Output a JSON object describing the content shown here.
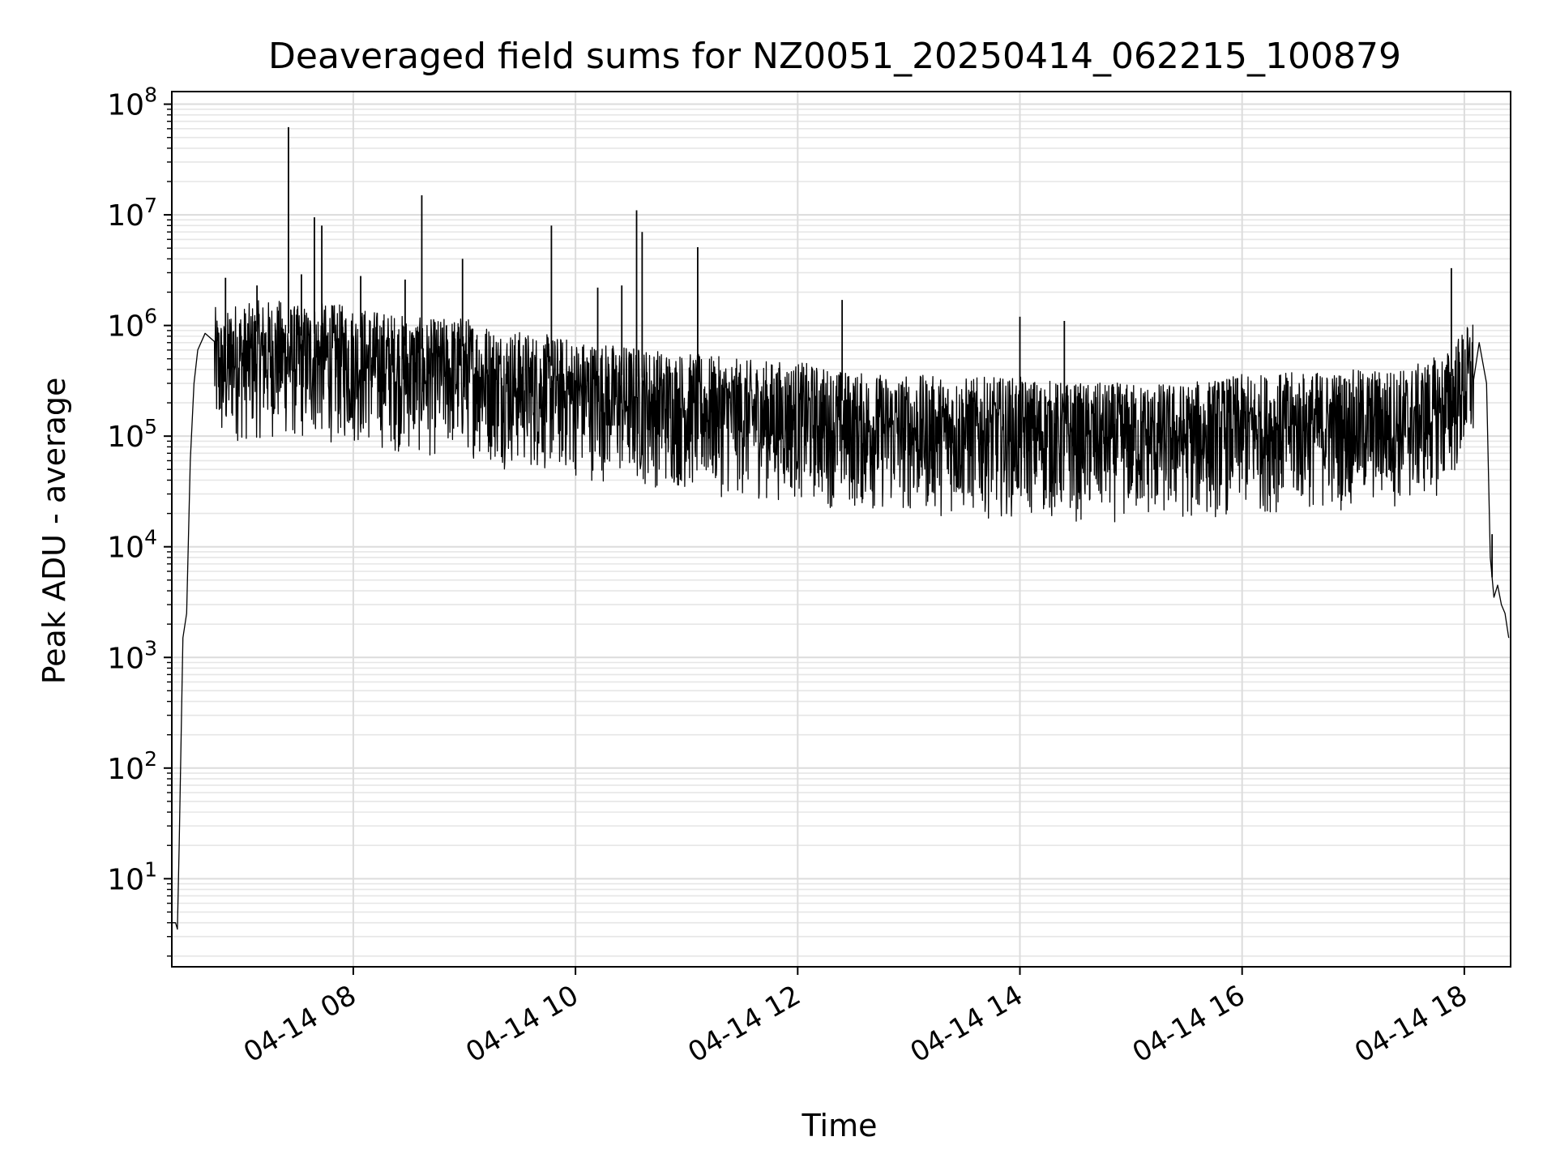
{
  "chart_data": {
    "type": "line",
    "title": "Deaveraged field sums for NZ0051_20250414_062215_100879",
    "xlabel": "Time",
    "ylabel": "Peak ADU - average",
    "yscale": "log",
    "grid": true,
    "legend": "none",
    "xlim": [
      "2025-04-14T06:22",
      "2025-04-14T18:25"
    ],
    "ylim": [
      1.6,
      130000000
    ],
    "x_ticks": [
      {
        "value": "2025-04-14T08:00",
        "label": "04-14 08"
      },
      {
        "value": "2025-04-14T10:00",
        "label": "04-14 10"
      },
      {
        "value": "2025-04-14T12:00",
        "label": "04-14 12"
      },
      {
        "value": "2025-04-14T14:00",
        "label": "04-14 14"
      },
      {
        "value": "2025-04-14T16:00",
        "label": "04-14 16"
      },
      {
        "value": "2025-04-14T18:00",
        "label": "04-14 18"
      }
    ],
    "y_ticks": [
      {
        "value": 10,
        "base": "10",
        "exp": "1"
      },
      {
        "value": 100,
        "base": "10",
        "exp": "2"
      },
      {
        "value": 1000,
        "base": "10",
        "exp": "3"
      },
      {
        "value": 10000,
        "base": "10",
        "exp": "4"
      },
      {
        "value": 100000,
        "base": "10",
        "exp": "5"
      },
      {
        "value": 1000000,
        "base": "10",
        "exp": "6"
      },
      {
        "value": 10000000,
        "base": "10",
        "exp": "7"
      },
      {
        "value": 100000000,
        "base": "10",
        "exp": "8"
      }
    ],
    "series": [
      {
        "color": "#000000",
        "x": [
          "2025-04-14T06:22",
          "2025-04-14T06:24",
          "2025-04-14T06:25",
          "2025-04-14T06:26",
          "2025-04-14T06:28",
          "2025-04-14T06:30",
          "2025-04-14T06:32",
          "2025-04-14T06:34",
          "2025-04-14T06:36",
          "2025-04-14T06:40",
          "2025-04-14T06:45",
          "2025-04-14T06:50",
          "2025-04-14T06:55",
          "2025-04-14T07:00",
          "2025-04-14T07:10",
          "2025-04-14T07:20",
          "2025-04-14T07:30",
          "2025-04-14T07:40",
          "2025-04-14T08:00",
          "2025-04-14T08:20",
          "2025-04-14T08:40",
          "2025-04-14T09:00",
          "2025-04-14T09:20",
          "2025-04-14T09:40",
          "2025-04-14T10:00",
          "2025-04-14T10:30",
          "2025-04-14T11:00",
          "2025-04-14T11:30",
          "2025-04-14T12:00",
          "2025-04-14T12:30",
          "2025-04-14T13:00",
          "2025-04-14T13:30",
          "2025-04-14T14:00",
          "2025-04-14T14:30",
          "2025-04-14T15:00",
          "2025-04-14T15:30",
          "2025-04-14T16:00",
          "2025-04-14T16:30",
          "2025-04-14T17:00",
          "2025-04-14T17:30",
          "2025-04-14T17:50",
          "2025-04-14T18:00",
          "2025-04-14T18:08",
          "2025-04-14T18:12",
          "2025-04-14T18:14",
          "2025-04-14T18:16",
          "2025-04-14T18:18",
          "2025-04-14T18:20",
          "2025-04-14T18:22",
          "2025-04-14T18:24"
        ],
        "y": [
          4,
          4,
          3.5,
          20,
          1500,
          2500,
          60000,
          300000,
          600000,
          850000,
          800000,
          600000,
          900000,
          800000,
          900000,
          900000,
          800000,
          850000,
          800000,
          700000,
          600000,
          650000,
          500000,
          450000,
          400000,
          350000,
          300000,
          260000,
          250000,
          200000,
          190000,
          180000,
          180000,
          160000,
          160000,
          160000,
          190000,
          200000,
          210000,
          220000,
          300000,
          500000,
          700000,
          300000,
          8000,
          3500,
          4500,
          3000,
          2500,
          1500
        ],
        "noise": {
          "start": "2025-04-14T06:45",
          "end": "2025-04-14T18:05",
          "low_factor": 0.1,
          "high_factor": 1.9
        },
        "spikes": [
          {
            "x": "2025-04-14T06:51",
            "y": 2700000
          },
          {
            "x": "2025-04-14T07:08",
            "y": 2300000
          },
          {
            "x": "2025-04-14T07:25",
            "y": 62000000
          },
          {
            "x": "2025-04-14T07:32",
            "y": 2900000
          },
          {
            "x": "2025-04-14T07:39",
            "y": 9500000
          },
          {
            "x": "2025-04-14T07:43",
            "y": 8000000
          },
          {
            "x": "2025-04-14T08:04",
            "y": 2800000
          },
          {
            "x": "2025-04-14T08:28",
            "y": 2600000
          },
          {
            "x": "2025-04-14T08:37",
            "y": 15000000
          },
          {
            "x": "2025-04-14T08:59",
            "y": 4000000
          },
          {
            "x": "2025-04-14T09:47",
            "y": 8000000
          },
          {
            "x": "2025-04-14T10:12",
            "y": 2200000
          },
          {
            "x": "2025-04-14T10:25",
            "y": 2300000
          },
          {
            "x": "2025-04-14T10:33",
            "y": 11000000
          },
          {
            "x": "2025-04-14T10:36",
            "y": 7000000
          },
          {
            "x": "2025-04-14T11:06",
            "y": 5100000
          },
          {
            "x": "2025-04-14T12:24",
            "y": 1700000
          },
          {
            "x": "2025-04-14T14:00",
            "y": 1200000
          },
          {
            "x": "2025-04-14T14:24",
            "y": 1100000
          },
          {
            "x": "2025-04-14T17:53",
            "y": 3300000
          },
          {
            "x": "2025-04-14T18:15",
            "y": 13000
          }
        ]
      }
    ]
  }
}
